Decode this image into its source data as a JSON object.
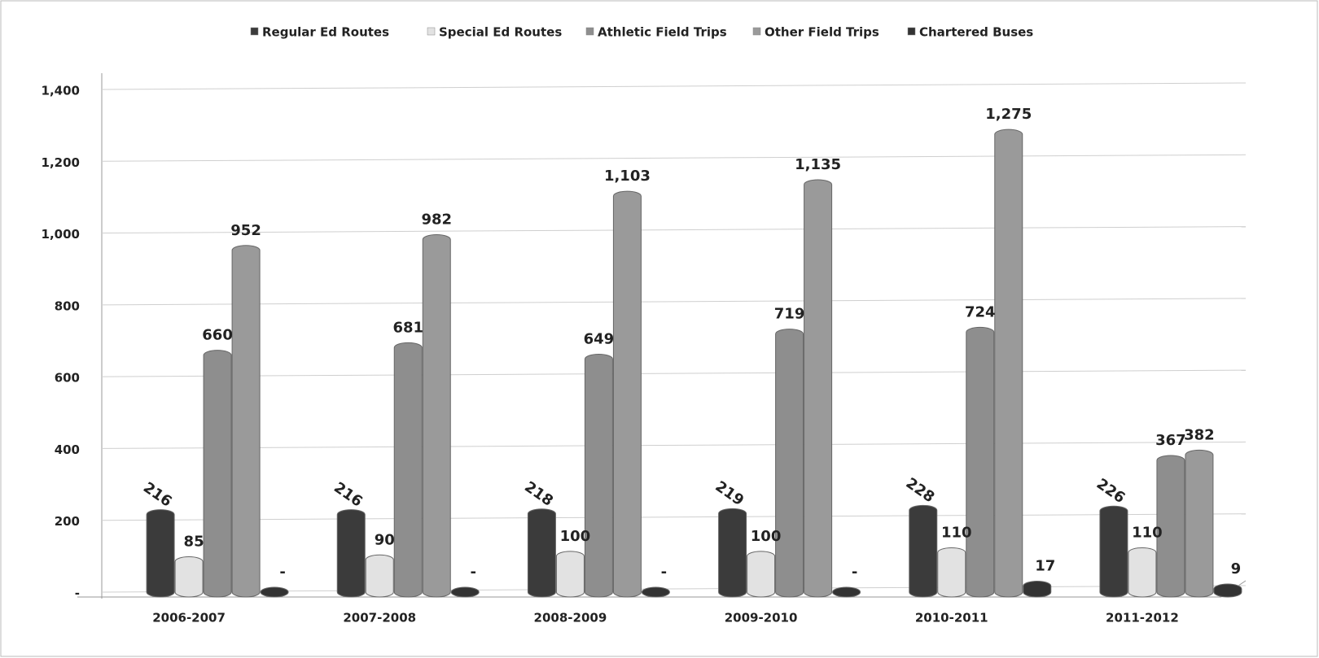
{
  "chart_data": {
    "type": "bar",
    "categories": [
      "2006-2007",
      "2007-2008",
      "2008-2009",
      "2009-2010",
      "2010-2011",
      "2011-2012"
    ],
    "series": [
      {
        "name": "Regular Ed Routes",
        "color": "#3b3b3b",
        "values": [
          216,
          216,
          218,
          219,
          228,
          226
        ]
      },
      {
        "name": "Special Ed Routes",
        "color": "#e2e2e2",
        "values": [
          85,
          90,
          100,
          100,
          110,
          110
        ]
      },
      {
        "name": "Athletic Field Trips",
        "color": "#8e8e8e",
        "values": [
          660,
          681,
          649,
          719,
          724,
          367
        ]
      },
      {
        "name": "Other Field Trips",
        "color": "#9a9a9a",
        "values": [
          952,
          982,
          1103,
          1135,
          1275,
          382
        ],
        "value_labels": [
          "952",
          "982",
          "1,103",
          "1,135",
          "1,275",
          "382"
        ]
      },
      {
        "name": "Chartered Buses",
        "color": "#333333",
        "values": [
          0,
          0,
          0,
          0,
          17,
          9
        ],
        "value_labels": [
          "-",
          "-",
          "-",
          "-",
          "17",
          "9"
        ]
      }
    ],
    "ylim": [
      0,
      1400
    ],
    "yticks": [
      {
        "value": 0,
        "label": "-"
      },
      200,
      400,
      600,
      800,
      {
        "value": 1000,
        "label": "1,000"
      },
      {
        "value": 1200,
        "label": "1,200"
      },
      {
        "value": 1400,
        "label": "1,400"
      }
    ],
    "grid": true,
    "legend": "top"
  }
}
